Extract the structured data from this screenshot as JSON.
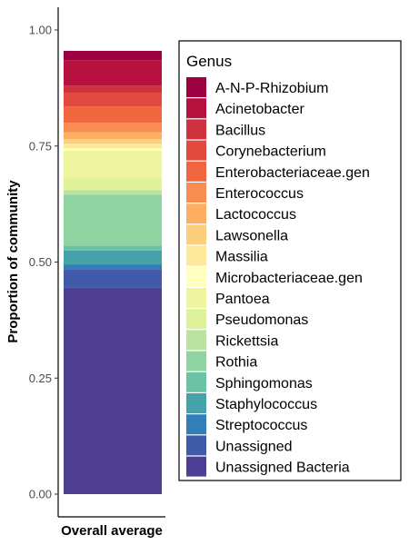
{
  "chart_data": {
    "type": "bar",
    "stacked": true,
    "categories": [
      "Overall average"
    ],
    "xlabel": "",
    "ylabel": "Proportion of community",
    "ylim": [
      0,
      1.0
    ],
    "yticks": [
      0.0,
      0.25,
      0.5,
      0.75,
      1.0
    ],
    "ytick_labels": [
      "0.00",
      "0.25",
      "0.50",
      "0.75",
      "1.00"
    ],
    "grid": false,
    "legend_title": "Genus",
    "legend_position": "right",
    "series": [
      {
        "name": "A-N-P-Rhizobium",
        "color": "#9E0142",
        "values": [
          0.02
        ]
      },
      {
        "name": "Acinetobacter",
        "color": "#B7123F",
        "values": [
          0.055
        ]
      },
      {
        "name": "Bacillus",
        "color": "#D0313E",
        "values": [
          0.015
        ]
      },
      {
        "name": "Corynebacterium",
        "color": "#E2493F",
        "values": [
          0.03
        ]
      },
      {
        "name": "Enterobacteriaceae.gen",
        "color": "#F0673F",
        "values": [
          0.035
        ]
      },
      {
        "name": "Enterococcus",
        "color": "#F88D51",
        "values": [
          0.02
        ]
      },
      {
        "name": "Lactococcus",
        "color": "#FDAE61",
        "values": [
          0.015
        ]
      },
      {
        "name": "Lawsonella",
        "color": "#FDCF7D",
        "values": [
          0.01
        ]
      },
      {
        "name": "Massilia",
        "color": "#FEE99A",
        "values": [
          0.01
        ]
      },
      {
        "name": "Microbacteriaceae.gen",
        "color": "#FFFFBF",
        "values": [
          0.005
        ]
      },
      {
        "name": "Pantoea",
        "color": "#EEF59E",
        "values": [
          0.06
        ]
      },
      {
        "name": "Pseudomonas",
        "color": "#DEF299",
        "values": [
          0.025
        ]
      },
      {
        "name": "Rickettsia",
        "color": "#B9E39E",
        "values": [
          0.01
        ]
      },
      {
        "name": "Rothia",
        "color": "#8FD4A0",
        "values": [
          0.11
        ]
      },
      {
        "name": "Sphingomonas",
        "color": "#6AC3A5",
        "values": [
          0.01
        ]
      },
      {
        "name": "Staphylococcus",
        "color": "#46A2A9",
        "values": [
          0.03
        ]
      },
      {
        "name": "Streptococcus",
        "color": "#317EB9",
        "values": [
          0.01
        ]
      },
      {
        "name": "Unassigned",
        "color": "#3F5BA9",
        "values": [
          0.04
        ]
      },
      {
        "name": "Unassigned Bacteria",
        "color": "#4E3E94",
        "values": [
          0.445
        ]
      }
    ]
  }
}
